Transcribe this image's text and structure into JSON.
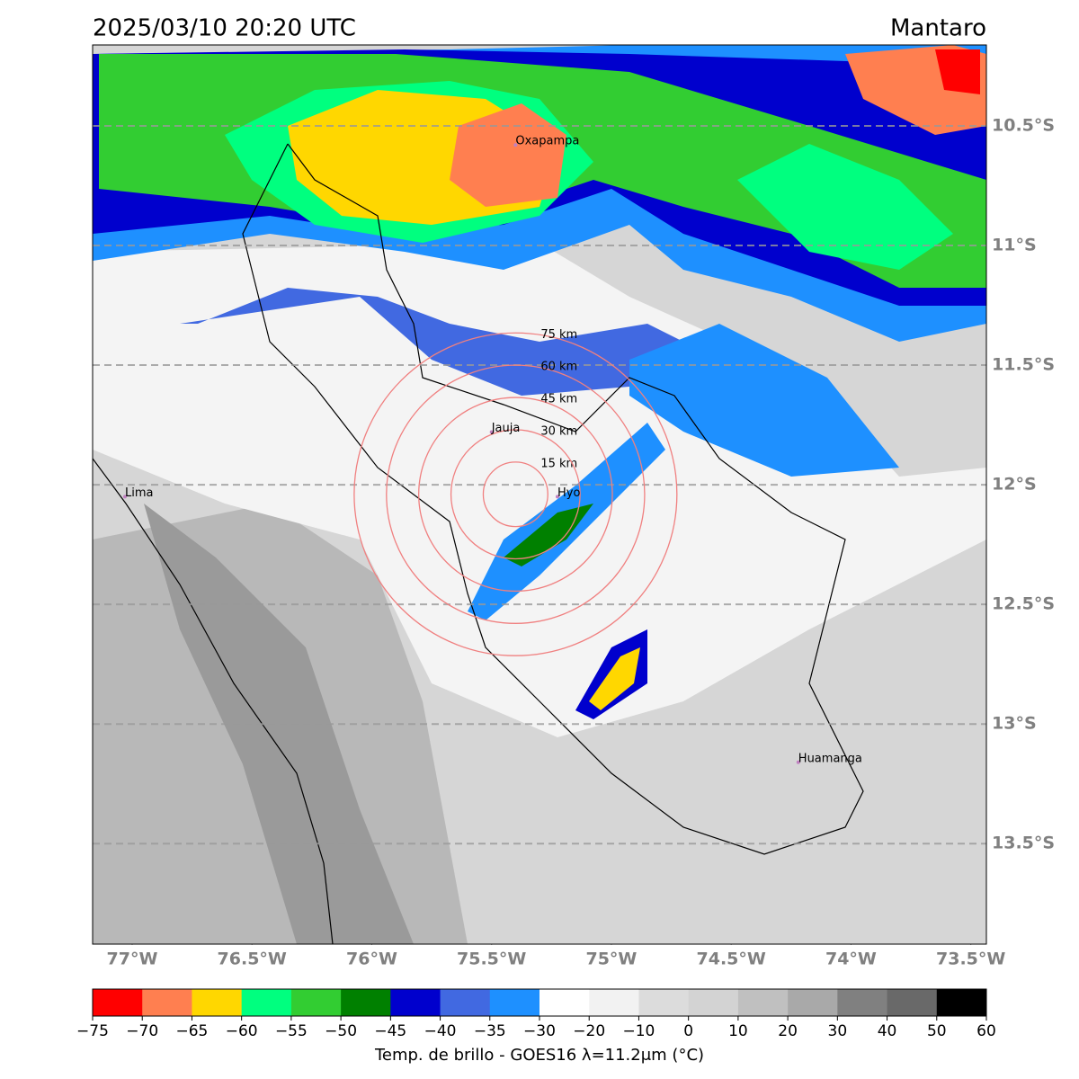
{
  "map": {
    "title": "2025/03/10 20:20 UTC",
    "region": "Mantaro",
    "lonlim": [
      -77.165,
      -73.435
    ],
    "latlim": [
      -10.162,
      -13.92
    ],
    "lon_ticks": [
      {
        "value": -77,
        "label": "77°W"
      },
      {
        "value": -76.5,
        "label": "76.5°W"
      },
      {
        "value": -76,
        "label": "76°W"
      },
      {
        "value": -75.5,
        "label": "75.5°W"
      },
      {
        "value": -75,
        "label": "75°W"
      },
      {
        "value": -74.5,
        "label": "74.5°W"
      },
      {
        "value": -74,
        "label": "74°W"
      },
      {
        "value": -73.5,
        "label": "73.5°W"
      }
    ],
    "lat_ticks": [
      {
        "value": -10.5,
        "label": "10.5°S"
      },
      {
        "value": -11,
        "label": "11°S"
      },
      {
        "value": -11.5,
        "label": "11.5°S"
      },
      {
        "value": -12,
        "label": "12°S"
      },
      {
        "value": -12.5,
        "label": "12.5°S"
      },
      {
        "value": -13,
        "label": "13°S"
      },
      {
        "value": -13.5,
        "label": "13.5°S"
      }
    ],
    "cities": [
      {
        "name": "Oxapampa",
        "lon": -75.4,
        "lat": -10.58
      },
      {
        "name": "Jauja",
        "lon": -75.5,
        "lat": -11.78
      },
      {
        "name": "Hyo",
        "lon": -75.225,
        "lat": -12.05
      },
      {
        "name": "Lima",
        "lon": -77.03,
        "lat": -12.05
      },
      {
        "name": "Huamanga",
        "lon": -74.22,
        "lat": -13.16
      }
    ],
    "rings_center": [
      -75.4,
      -12.04
    ],
    "rings": [
      {
        "value": 15,
        "label": "15 km"
      },
      {
        "value": 30,
        "label": "30 km"
      },
      {
        "value": 45,
        "label": "45 km"
      },
      {
        "value": 60,
        "label": "60 km"
      },
      {
        "value": 75,
        "label": "75 km"
      }
    ]
  },
  "colorbar": {
    "label": "Temp. de brillo - GOES16 λ=11.2μm (°C)",
    "ticks": [
      {
        "value": -75,
        "label": "−75"
      },
      {
        "value": -70,
        "label": "−70"
      },
      {
        "value": -65,
        "label": "−65"
      },
      {
        "value": -60,
        "label": "−60"
      },
      {
        "value": -55,
        "label": "−55"
      },
      {
        "value": -50,
        "label": "−50"
      },
      {
        "value": -45,
        "label": "−45"
      },
      {
        "value": -40,
        "label": "−40"
      },
      {
        "value": -35,
        "label": "−35"
      },
      {
        "value": -30,
        "label": "−30"
      },
      {
        "value": -20,
        "label": "−20"
      },
      {
        "value": -10,
        "label": "−10"
      },
      0,
      10,
      20,
      30,
      40,
      50,
      60
    ],
    "colors": [
      "#ff0000",
      "#ff7f50",
      "#ffd700",
      "#00ff7f",
      "#32cd32",
      "#008000",
      "#0000cd",
      "#4169e1",
      "#1e90ff",
      "#ffffff",
      "#f2f2f2",
      "#dcdcdc",
      "#d3d3d3",
      "#c0c0c0",
      "#a9a9a9",
      "#808080",
      "#696969",
      "#000000"
    ]
  }
}
